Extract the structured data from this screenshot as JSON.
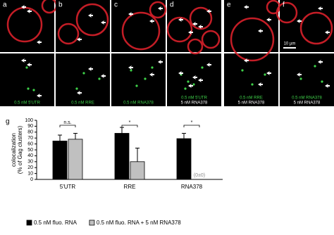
{
  "panels": [
    {
      "letter": "a",
      "labels": [
        "0.5 nM 5'UTR"
      ]
    },
    {
      "letter": "b",
      "labels": [
        "0.5 nM RRE"
      ]
    },
    {
      "letter": "c",
      "labels": [
        "0.5 nM RNA378"
      ]
    },
    {
      "letter": "d",
      "labels": [
        "0.5 nM 5'UTR",
        "5 nM RNA378"
      ]
    },
    {
      "letter": "e",
      "labels": [
        "0.5 nM RRE",
        "5 nM RNA378"
      ]
    },
    {
      "letter": "f",
      "labels": [
        "0.5 nM RNA378",
        "5 nM RNA378"
      ]
    }
  ],
  "scale_bar": "10 µm",
  "chart_data": {
    "type": "bar",
    "panel_letter": "g",
    "ylabel": [
      "colocalization",
      "(% of Gag clusters)"
    ],
    "categories": [
      "5'UTR",
      "RRE",
      "RNA378"
    ],
    "series": [
      {
        "name": "0.5 nM fluo. RNA",
        "color": "#000000",
        "values": [
          65,
          78,
          69
        ],
        "errors": [
          10,
          10,
          9
        ]
      },
      {
        "name": "0.5 nM fluo. RNA + 5 nM RNA378",
        "color": "#c0c0c0",
        "values": [
          68,
          30,
          0
        ],
        "errors": [
          10,
          23,
          0
        ],
        "value_labels": [
          null,
          null,
          "(0±0)"
        ]
      }
    ],
    "significance": [
      "n.s.",
      "*",
      "*"
    ],
    "ylim": [
      0,
      100
    ],
    "yticks": [
      0,
      10,
      20,
      30,
      40,
      50,
      60,
      70,
      80,
      90,
      100
    ],
    "legend": "bottom"
  }
}
